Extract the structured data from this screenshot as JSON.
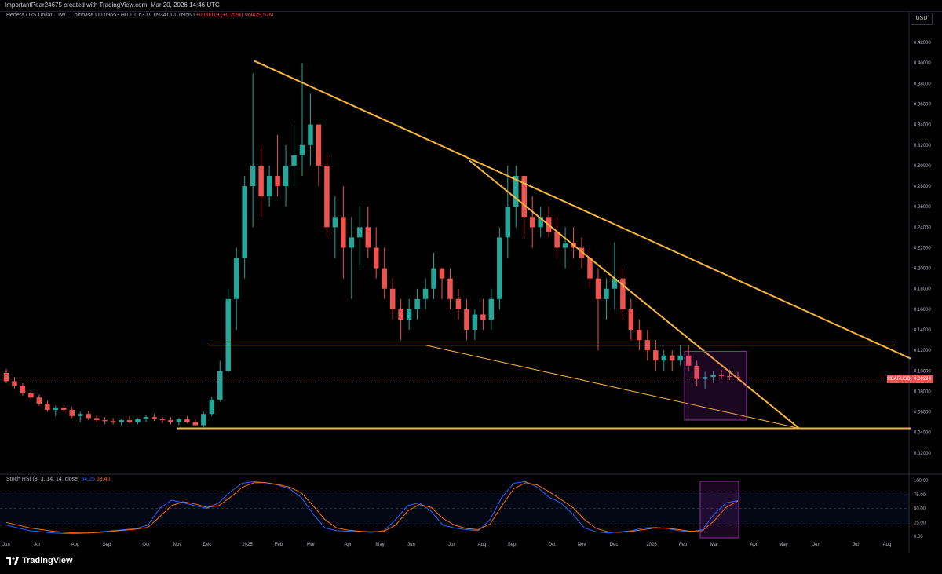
{
  "header": {
    "credit": "ImportantPear24675 created with TradingView.com, Mar 20, 2026 14:46 UTC"
  },
  "legend": {
    "symbol": "Hedera / US Dollar · 1W · Coinbase",
    "open": "O0.09653",
    "high": "H0.10163",
    "low": "L0.09341",
    "close": "C0.09560",
    "change": "+0.00019 (+0.20%)",
    "volume": "Vol429.57M"
  },
  "currency_label": "USD",
  "ticker_tag": "HBARUSD",
  "current_price": "0.09293",
  "rsi_legend": {
    "title": "Stoch RSI (3, 3, 14, 14, close)",
    "k": "64.25",
    "d": "63.40"
  },
  "branding": "TradingView",
  "colors": {
    "up": "#26a69a",
    "down": "#ef5350",
    "trendline": "#f7b53a",
    "box": "#9c27b0",
    "k_line": "#2962ff",
    "d_line": "#ff6d00"
  },
  "chart_data": {
    "type": "candlestick",
    "price_axis_ticks": [
      "0.42000",
      "0.40000",
      "0.38000",
      "0.36000",
      "0.34000",
      "0.32000",
      "0.30000",
      "0.28000",
      "0.26000",
      "0.24000",
      "0.22000",
      "0.20000",
      "0.18000",
      "0.16000",
      "0.14000",
      "0.12000",
      "0.10000",
      "0.08000",
      "0.06000",
      "0.04000",
      "0.02000"
    ],
    "rsi_axis_ticks": [
      "100.00",
      "75.00",
      "50.00",
      "25.00",
      "0.00"
    ],
    "time_axis_ticks": [
      "Jun",
      "Jul",
      "Aug",
      "Sep",
      "Oct",
      "Nov",
      "Dec",
      "2025",
      "Feb",
      "Mar",
      "Apr",
      "May",
      "Jun",
      "Jul",
      "Aug",
      "Sep",
      "Oct",
      "Nov",
      "Dec",
      "2026",
      "Feb",
      "Mar",
      "Apr",
      "May",
      "Jun",
      "Jul",
      "Aug"
    ],
    "ylim": [
      0.0,
      0.43
    ],
    "candles_ohlc": [
      [
        0.098,
        0.102,
        0.088,
        0.09
      ],
      [
        0.09,
        0.094,
        0.083,
        0.085
      ],
      [
        0.085,
        0.088,
        0.076,
        0.078
      ],
      [
        0.078,
        0.081,
        0.072,
        0.074
      ],
      [
        0.074,
        0.077,
        0.066,
        0.068
      ],
      [
        0.068,
        0.071,
        0.06,
        0.062
      ],
      [
        0.062,
        0.066,
        0.056,
        0.064
      ],
      [
        0.064,
        0.067,
        0.06,
        0.062
      ],
      [
        0.062,
        0.065,
        0.054,
        0.056
      ],
      [
        0.056,
        0.06,
        0.05,
        0.058
      ],
      [
        0.058,
        0.061,
        0.052,
        0.054
      ],
      [
        0.054,
        0.057,
        0.05,
        0.052
      ],
      [
        0.052,
        0.055,
        0.048,
        0.051
      ],
      [
        0.051,
        0.054,
        0.048,
        0.05
      ],
      [
        0.05,
        0.053,
        0.047,
        0.052
      ],
      [
        0.052,
        0.056,
        0.049,
        0.05
      ],
      [
        0.05,
        0.054,
        0.048,
        0.053
      ],
      [
        0.053,
        0.057,
        0.05,
        0.055
      ],
      [
        0.055,
        0.058,
        0.051,
        0.053
      ],
      [
        0.053,
        0.055,
        0.049,
        0.052
      ],
      [
        0.052,
        0.055,
        0.048,
        0.05
      ],
      [
        0.05,
        0.054,
        0.047,
        0.053
      ],
      [
        0.053,
        0.056,
        0.049,
        0.05
      ],
      [
        0.05,
        0.053,
        0.046,
        0.047
      ],
      [
        0.047,
        0.06,
        0.045,
        0.058
      ],
      [
        0.058,
        0.075,
        0.056,
        0.072
      ],
      [
        0.072,
        0.11,
        0.07,
        0.1
      ],
      [
        0.1,
        0.18,
        0.098,
        0.17
      ],
      [
        0.17,
        0.22,
        0.14,
        0.21
      ],
      [
        0.21,
        0.29,
        0.19,
        0.28
      ],
      [
        0.28,
        0.39,
        0.24,
        0.3
      ],
      [
        0.3,
        0.32,
        0.25,
        0.27
      ],
      [
        0.27,
        0.3,
        0.26,
        0.29
      ],
      [
        0.29,
        0.33,
        0.27,
        0.28
      ],
      [
        0.28,
        0.32,
        0.26,
        0.3
      ],
      [
        0.3,
        0.34,
        0.28,
        0.31
      ],
      [
        0.31,
        0.4,
        0.29,
        0.32
      ],
      [
        0.32,
        0.37,
        0.3,
        0.34
      ],
      [
        0.34,
        0.32,
        0.28,
        0.3
      ],
      [
        0.3,
        0.31,
        0.23,
        0.24
      ],
      [
        0.24,
        0.27,
        0.21,
        0.25
      ],
      [
        0.25,
        0.28,
        0.19,
        0.22
      ],
      [
        0.22,
        0.25,
        0.17,
        0.23
      ],
      [
        0.23,
        0.26,
        0.2,
        0.24
      ],
      [
        0.24,
        0.26,
        0.21,
        0.22
      ],
      [
        0.22,
        0.24,
        0.19,
        0.2
      ],
      [
        0.2,
        0.22,
        0.17,
        0.18
      ],
      [
        0.18,
        0.19,
        0.15,
        0.16
      ],
      [
        0.16,
        0.17,
        0.13,
        0.15
      ],
      [
        0.15,
        0.17,
        0.14,
        0.16
      ],
      [
        0.16,
        0.18,
        0.15,
        0.17
      ],
      [
        0.17,
        0.19,
        0.16,
        0.18
      ],
      [
        0.18,
        0.215,
        0.17,
        0.2
      ],
      [
        0.2,
        0.2,
        0.17,
        0.19
      ],
      [
        0.19,
        0.2,
        0.16,
        0.17
      ],
      [
        0.17,
        0.18,
        0.15,
        0.16
      ],
      [
        0.16,
        0.17,
        0.13,
        0.14
      ],
      [
        0.14,
        0.16,
        0.13,
        0.155
      ],
      [
        0.155,
        0.17,
        0.14,
        0.15
      ],
      [
        0.15,
        0.18,
        0.14,
        0.17
      ],
      [
        0.17,
        0.24,
        0.16,
        0.23
      ],
      [
        0.23,
        0.3,
        0.21,
        0.26
      ],
      [
        0.26,
        0.3,
        0.24,
        0.29
      ],
      [
        0.29,
        0.29,
        0.23,
        0.25
      ],
      [
        0.25,
        0.27,
        0.22,
        0.24
      ],
      [
        0.24,
        0.26,
        0.23,
        0.25
      ],
      [
        0.25,
        0.26,
        0.23,
        0.235
      ],
      [
        0.235,
        0.25,
        0.21,
        0.22
      ],
      [
        0.22,
        0.24,
        0.2,
        0.225
      ],
      [
        0.225,
        0.24,
        0.21,
        0.22
      ],
      [
        0.22,
        0.23,
        0.2,
        0.21
      ],
      [
        0.21,
        0.22,
        0.18,
        0.19
      ],
      [
        0.19,
        0.2,
        0.12,
        0.17
      ],
      [
        0.17,
        0.19,
        0.15,
        0.18
      ],
      [
        0.18,
        0.225,
        0.16,
        0.19
      ],
      [
        0.19,
        0.2,
        0.15,
        0.16
      ],
      [
        0.16,
        0.17,
        0.13,
        0.14
      ],
      [
        0.14,
        0.15,
        0.12,
        0.13
      ],
      [
        0.13,
        0.14,
        0.11,
        0.12
      ],
      [
        0.12,
        0.13,
        0.1,
        0.11
      ],
      [
        0.11,
        0.12,
        0.1,
        0.115
      ],
      [
        0.115,
        0.12,
        0.1,
        0.11
      ],
      [
        0.11,
        0.125,
        0.105,
        0.115
      ],
      [
        0.115,
        0.125,
        0.1,
        0.105
      ],
      [
        0.105,
        0.11,
        0.085,
        0.092
      ],
      [
        0.092,
        0.099,
        0.082,
        0.094
      ],
      [
        0.094,
        0.1,
        0.088,
        0.096
      ],
      [
        0.096,
        0.101,
        0.092,
        0.095
      ],
      [
        0.095,
        0.101,
        0.091,
        0.094
      ],
      [
        0.094,
        0.099,
        0.09,
        0.093
      ]
    ],
    "horizontal_levels": [
      0.125,
      0.044,
      0.095
    ],
    "stoch_rsi_k": [
      20,
      15,
      10,
      8,
      6,
      5,
      5,
      6,
      8,
      10,
      12,
      14,
      20,
      50,
      65,
      60,
      55,
      50,
      60,
      80,
      95,
      98,
      96,
      92,
      85,
      70,
      40,
      15,
      10,
      9,
      8,
      7,
      10,
      30,
      55,
      60,
      45,
      20,
      15,
      12,
      10,
      30,
      70,
      95,
      98,
      88,
      70,
      60,
      40,
      15,
      8,
      6,
      8,
      10,
      15,
      16,
      14,
      10,
      8,
      12,
      40,
      60,
      64
    ],
    "stoch_rsi_d": [
      25,
      20,
      15,
      12,
      9,
      7,
      6,
      6,
      7,
      9,
      11,
      13,
      16,
      35,
      55,
      62,
      58,
      52,
      55,
      70,
      88,
      96,
      96,
      93,
      88,
      78,
      55,
      30,
      15,
      11,
      9,
      8,
      9,
      20,
      45,
      57,
      52,
      32,
      20,
      14,
      12,
      22,
      55,
      85,
      96,
      92,
      80,
      66,
      52,
      30,
      14,
      8,
      7,
      9,
      12,
      15,
      15,
      12,
      9,
      10,
      28,
      52,
      63
    ]
  }
}
